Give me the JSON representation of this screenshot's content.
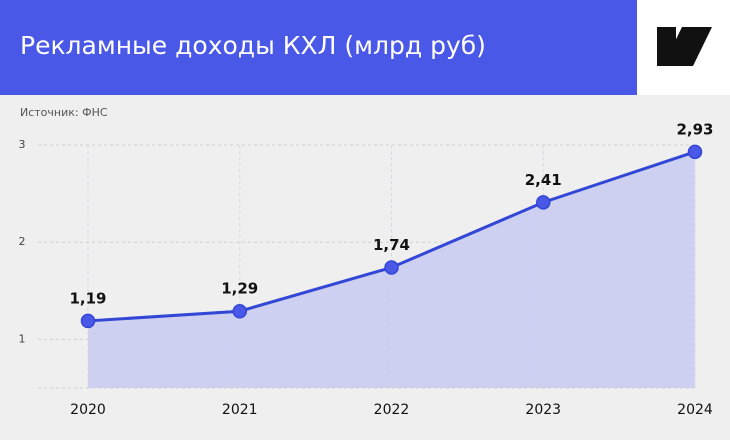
{
  "chart_data": {
    "type": "line",
    "title": "Рекламные доходы КХЛ (млрд руб)",
    "source": "Источник: ФНС",
    "categories": [
      "2020",
      "2021",
      "2022",
      "2023",
      "2024"
    ],
    "values": [
      1.19,
      1.29,
      1.74,
      2.41,
      2.93
    ],
    "value_labels": [
      "1,19",
      "1,29",
      "1,74",
      "2,41",
      "2,93"
    ],
    "color": "#3347d6",
    "area_color": "#cdd0f1",
    "ylim": [
      0.5,
      3.1
    ],
    "yticks": [
      1,
      2,
      3
    ],
    "grid": true
  }
}
